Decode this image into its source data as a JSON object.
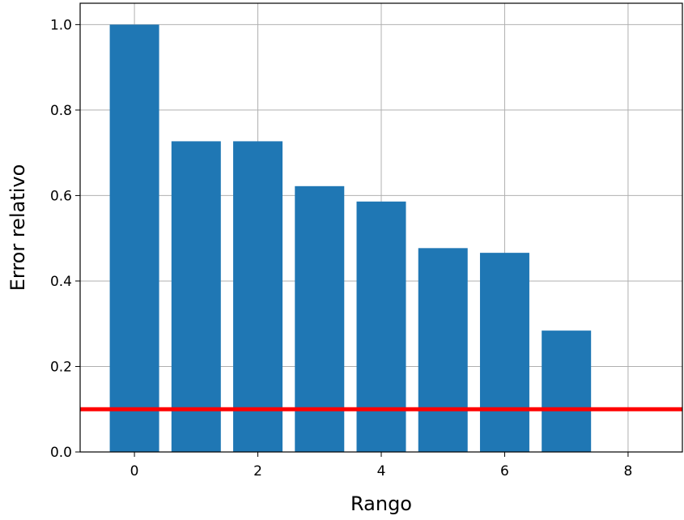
{
  "chart_data": {
    "type": "bar",
    "x": [
      0,
      1,
      2,
      3,
      4,
      5,
      6,
      7
    ],
    "values": [
      1.0,
      0.727,
      0.727,
      0.622,
      0.586,
      0.477,
      0.466,
      0.284
    ],
    "bar_color": "#1f77b4",
    "threshold": {
      "y": 0.1,
      "color": "#ff0000"
    },
    "xlabel": "Rango",
    "ylabel": "Error relativo",
    "xlim": [
      -0.88,
      8.88
    ],
    "ylim": [
      0,
      1.05
    ],
    "xticks": [
      0,
      2,
      4,
      6,
      8
    ],
    "xtick_labels": [
      "0",
      "2",
      "4",
      "6",
      "8"
    ],
    "yticks": [
      0.0,
      0.2,
      0.4,
      0.6,
      0.8,
      1.0
    ],
    "ytick_labels": [
      "0.0",
      "0.2",
      "0.4",
      "0.6",
      "0.8",
      "1.0"
    ],
    "grid": true
  }
}
